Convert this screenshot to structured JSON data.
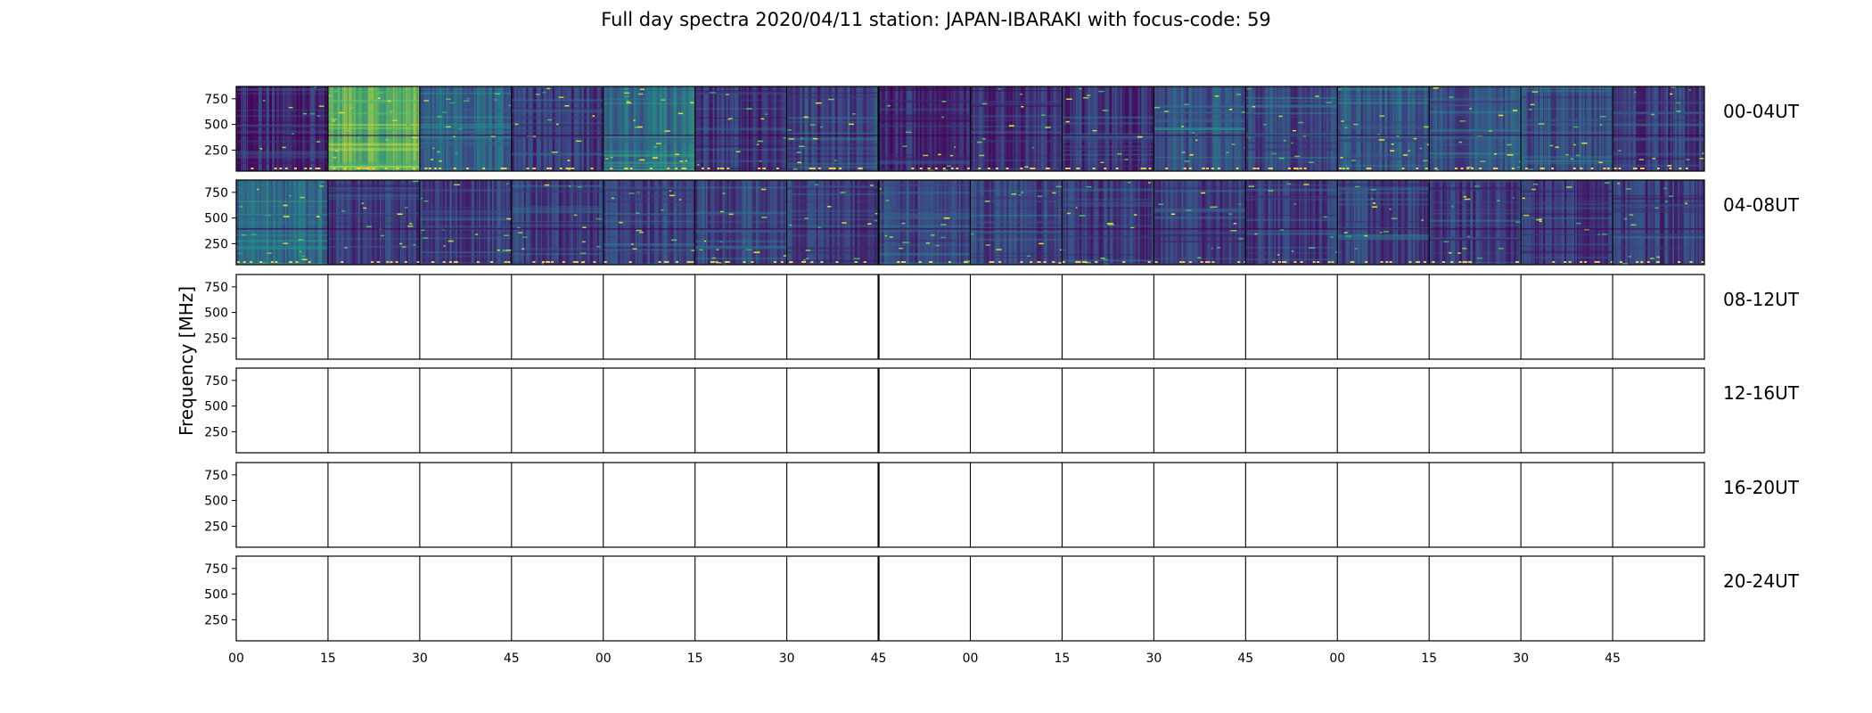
{
  "chart_data": {
    "type": "heatmap",
    "title": "Full day spectra 2020/04/11 station: JAPAN-IBARAKI with focus-code: 59",
    "ylabel": "Frequency [MHz]",
    "xlabel": "",
    "colormap": "viridis",
    "colormap_stops": [
      "#440154",
      "#3b528b",
      "#21918c",
      "#5ec962",
      "#fde725"
    ],
    "ylim": [
      45,
      870
    ],
    "y_ticks": [
      "750",
      "500",
      "250"
    ],
    "x_tick_labels": [
      "00",
      "15",
      "30",
      "45",
      "00",
      "15",
      "30",
      "45",
      "00",
      "15",
      "30",
      "45",
      "00",
      "15",
      "30",
      "45"
    ],
    "rows": [
      {
        "label": "00-04UT",
        "has_data": true,
        "panel_intensity": [
          0.15,
          0.75,
          0.35,
          0.22,
          0.42,
          0.18,
          0.24,
          0.14,
          0.16,
          0.18,
          0.3,
          0.25,
          0.32,
          0.3,
          0.28,
          0.22
        ]
      },
      {
        "label": "04-08UT",
        "has_data": true,
        "panel_intensity": [
          0.4,
          0.22,
          0.22,
          0.22,
          0.24,
          0.24,
          0.22,
          0.25,
          0.24,
          0.2,
          0.22,
          0.2,
          0.22,
          0.2,
          0.18,
          0.2
        ]
      },
      {
        "label": "08-12UT",
        "has_data": false
      },
      {
        "label": "12-16UT",
        "has_data": false
      },
      {
        "label": "16-20UT",
        "has_data": false
      },
      {
        "label": "20-24UT",
        "has_data": false
      }
    ],
    "grid": false,
    "legend": "none"
  }
}
